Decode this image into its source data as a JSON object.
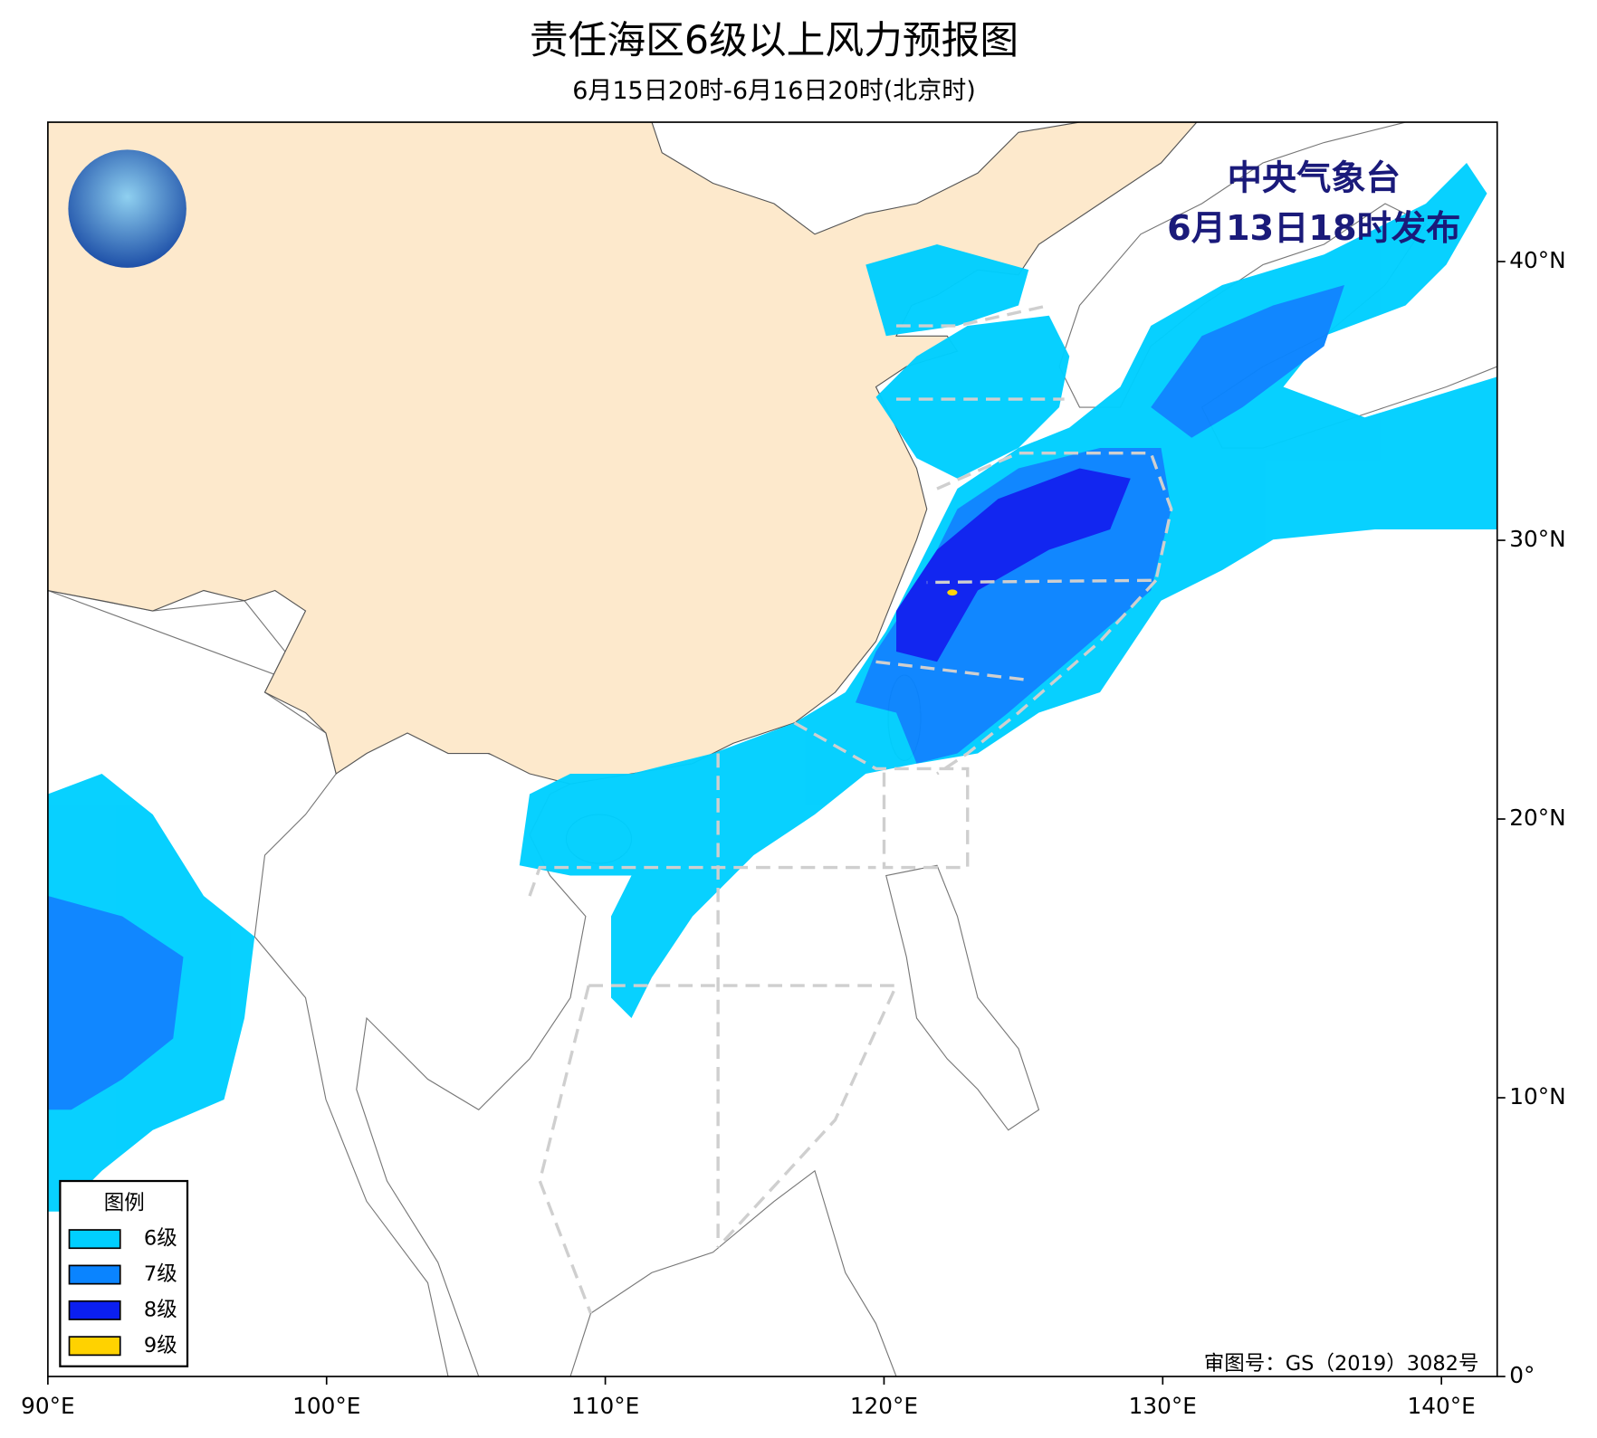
{
  "header": {
    "title": "责任海区6级以上风力预报图",
    "subtitle": "6月15日20时-6月16日20时(北京时)"
  },
  "issuer": [
    "中央气象台",
    "6月13日18时发布"
  ],
  "map": {
    "xlim": [
      90,
      142
    ],
    "ylim": [
      0,
      45
    ],
    "xticks": [
      {
        "value": 90,
        "label": "90°E"
      },
      {
        "value": 100,
        "label": "100°E"
      },
      {
        "value": 110,
        "label": "110°E"
      },
      {
        "value": 120,
        "label": "120°E"
      },
      {
        "value": 130,
        "label": "130°E"
      },
      {
        "value": 140,
        "label": "140°E"
      }
    ],
    "yticks": [
      {
        "value": 0,
        "label": "0°"
      },
      {
        "value": 10,
        "label": "10°N"
      },
      {
        "value": 20,
        "label": "20°N"
      },
      {
        "value": 30,
        "label": "30°N"
      },
      {
        "value": 40,
        "label": "40°N"
      }
    ]
  },
  "legend": {
    "title": "图例",
    "items": [
      {
        "label": "6级",
        "color": "#00cfff"
      },
      {
        "label": "7级",
        "color": "#0a84ff"
      },
      {
        "label": "8级",
        "color": "#0b1ff0"
      },
      {
        "label": "9级",
        "color": "#ffd200"
      }
    ]
  },
  "approval": "审图号：GS（2019）3082号"
}
